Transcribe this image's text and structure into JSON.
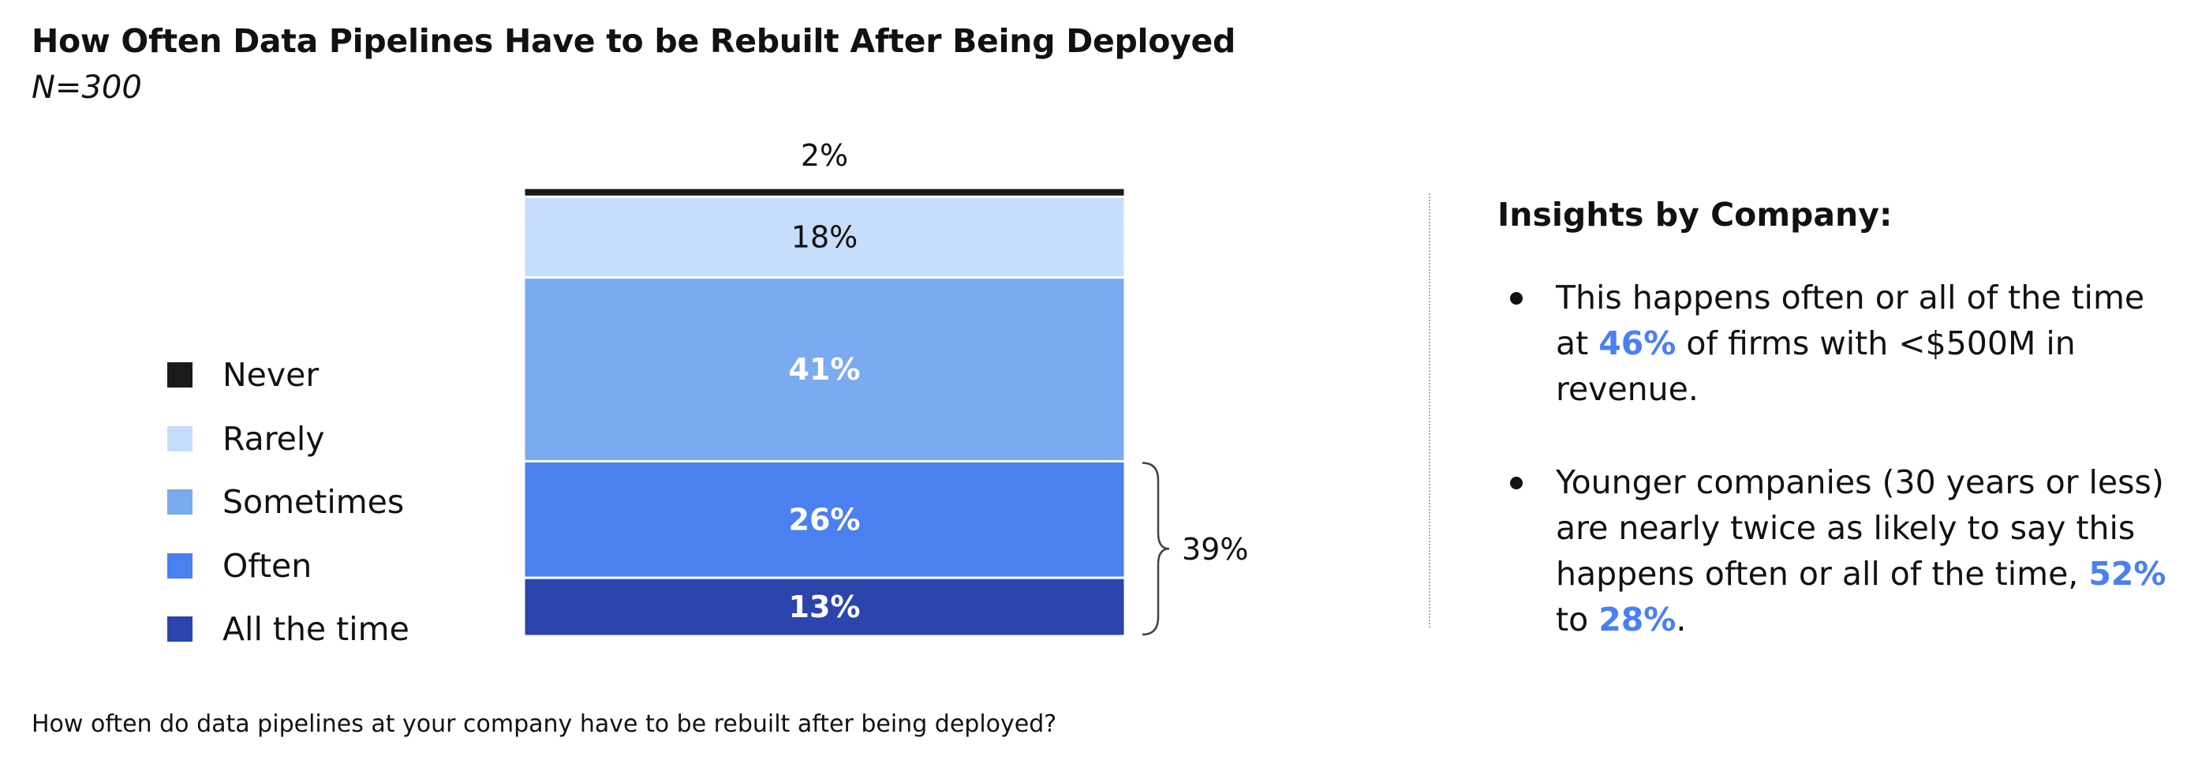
{
  "title": "How Often Data Pipelines Have to be Rebuilt After Being Deployed",
  "subtitle": "N=300",
  "question": "How often do data pipelines at your company have to be rebuilt after being deployed?",
  "chart_data": {
    "type": "bar",
    "stacked": true,
    "categories": [
      ""
    ],
    "series": [
      {
        "name": "Never",
        "values": [
          2
        ],
        "label": "2%",
        "color": "#1a1a1a"
      },
      {
        "name": "Rarely",
        "values": [
          18
        ],
        "label": "18%",
        "color": "#c6ddfb"
      },
      {
        "name": "Sometimes",
        "values": [
          41
        ],
        "label": "41%",
        "color": "#7aabf0"
      },
      {
        "name": "Often",
        "values": [
          26
        ],
        "label": "26%",
        "color": "#4a80f0"
      },
      {
        "name": "All the time",
        "values": [
          13
        ],
        "label": "13%",
        "color": "#2b45ac"
      }
    ],
    "bracket": {
      "series": [
        "Often",
        "All the time"
      ],
      "label": "39%"
    },
    "legend_position": "left"
  },
  "legend": [
    {
      "label": "Never",
      "color": "#1a1a1a"
    },
    {
      "label": "Rarely",
      "color": "#c6ddfb"
    },
    {
      "label": "Sometimes",
      "color": "#7aabf0"
    },
    {
      "label": "Often",
      "color": "#4a80f0"
    },
    {
      "label": "All the time",
      "color": "#2b45ac"
    }
  ],
  "insights": {
    "title": "Insights by Company:",
    "bullet1": {
      "t1": "This happens often or all of the time at ",
      "h1": "46%",
      "t2": " of firms with <$500M in revenue."
    },
    "bullet2": {
      "t1": "Younger companies (30 years or less) are nearly twice as likely to say this happens often or all of the time, ",
      "h1": "52%",
      "t2": " to ",
      "h2": "28%",
      "t3": "."
    },
    "highlight_color": "#4a80f0"
  }
}
